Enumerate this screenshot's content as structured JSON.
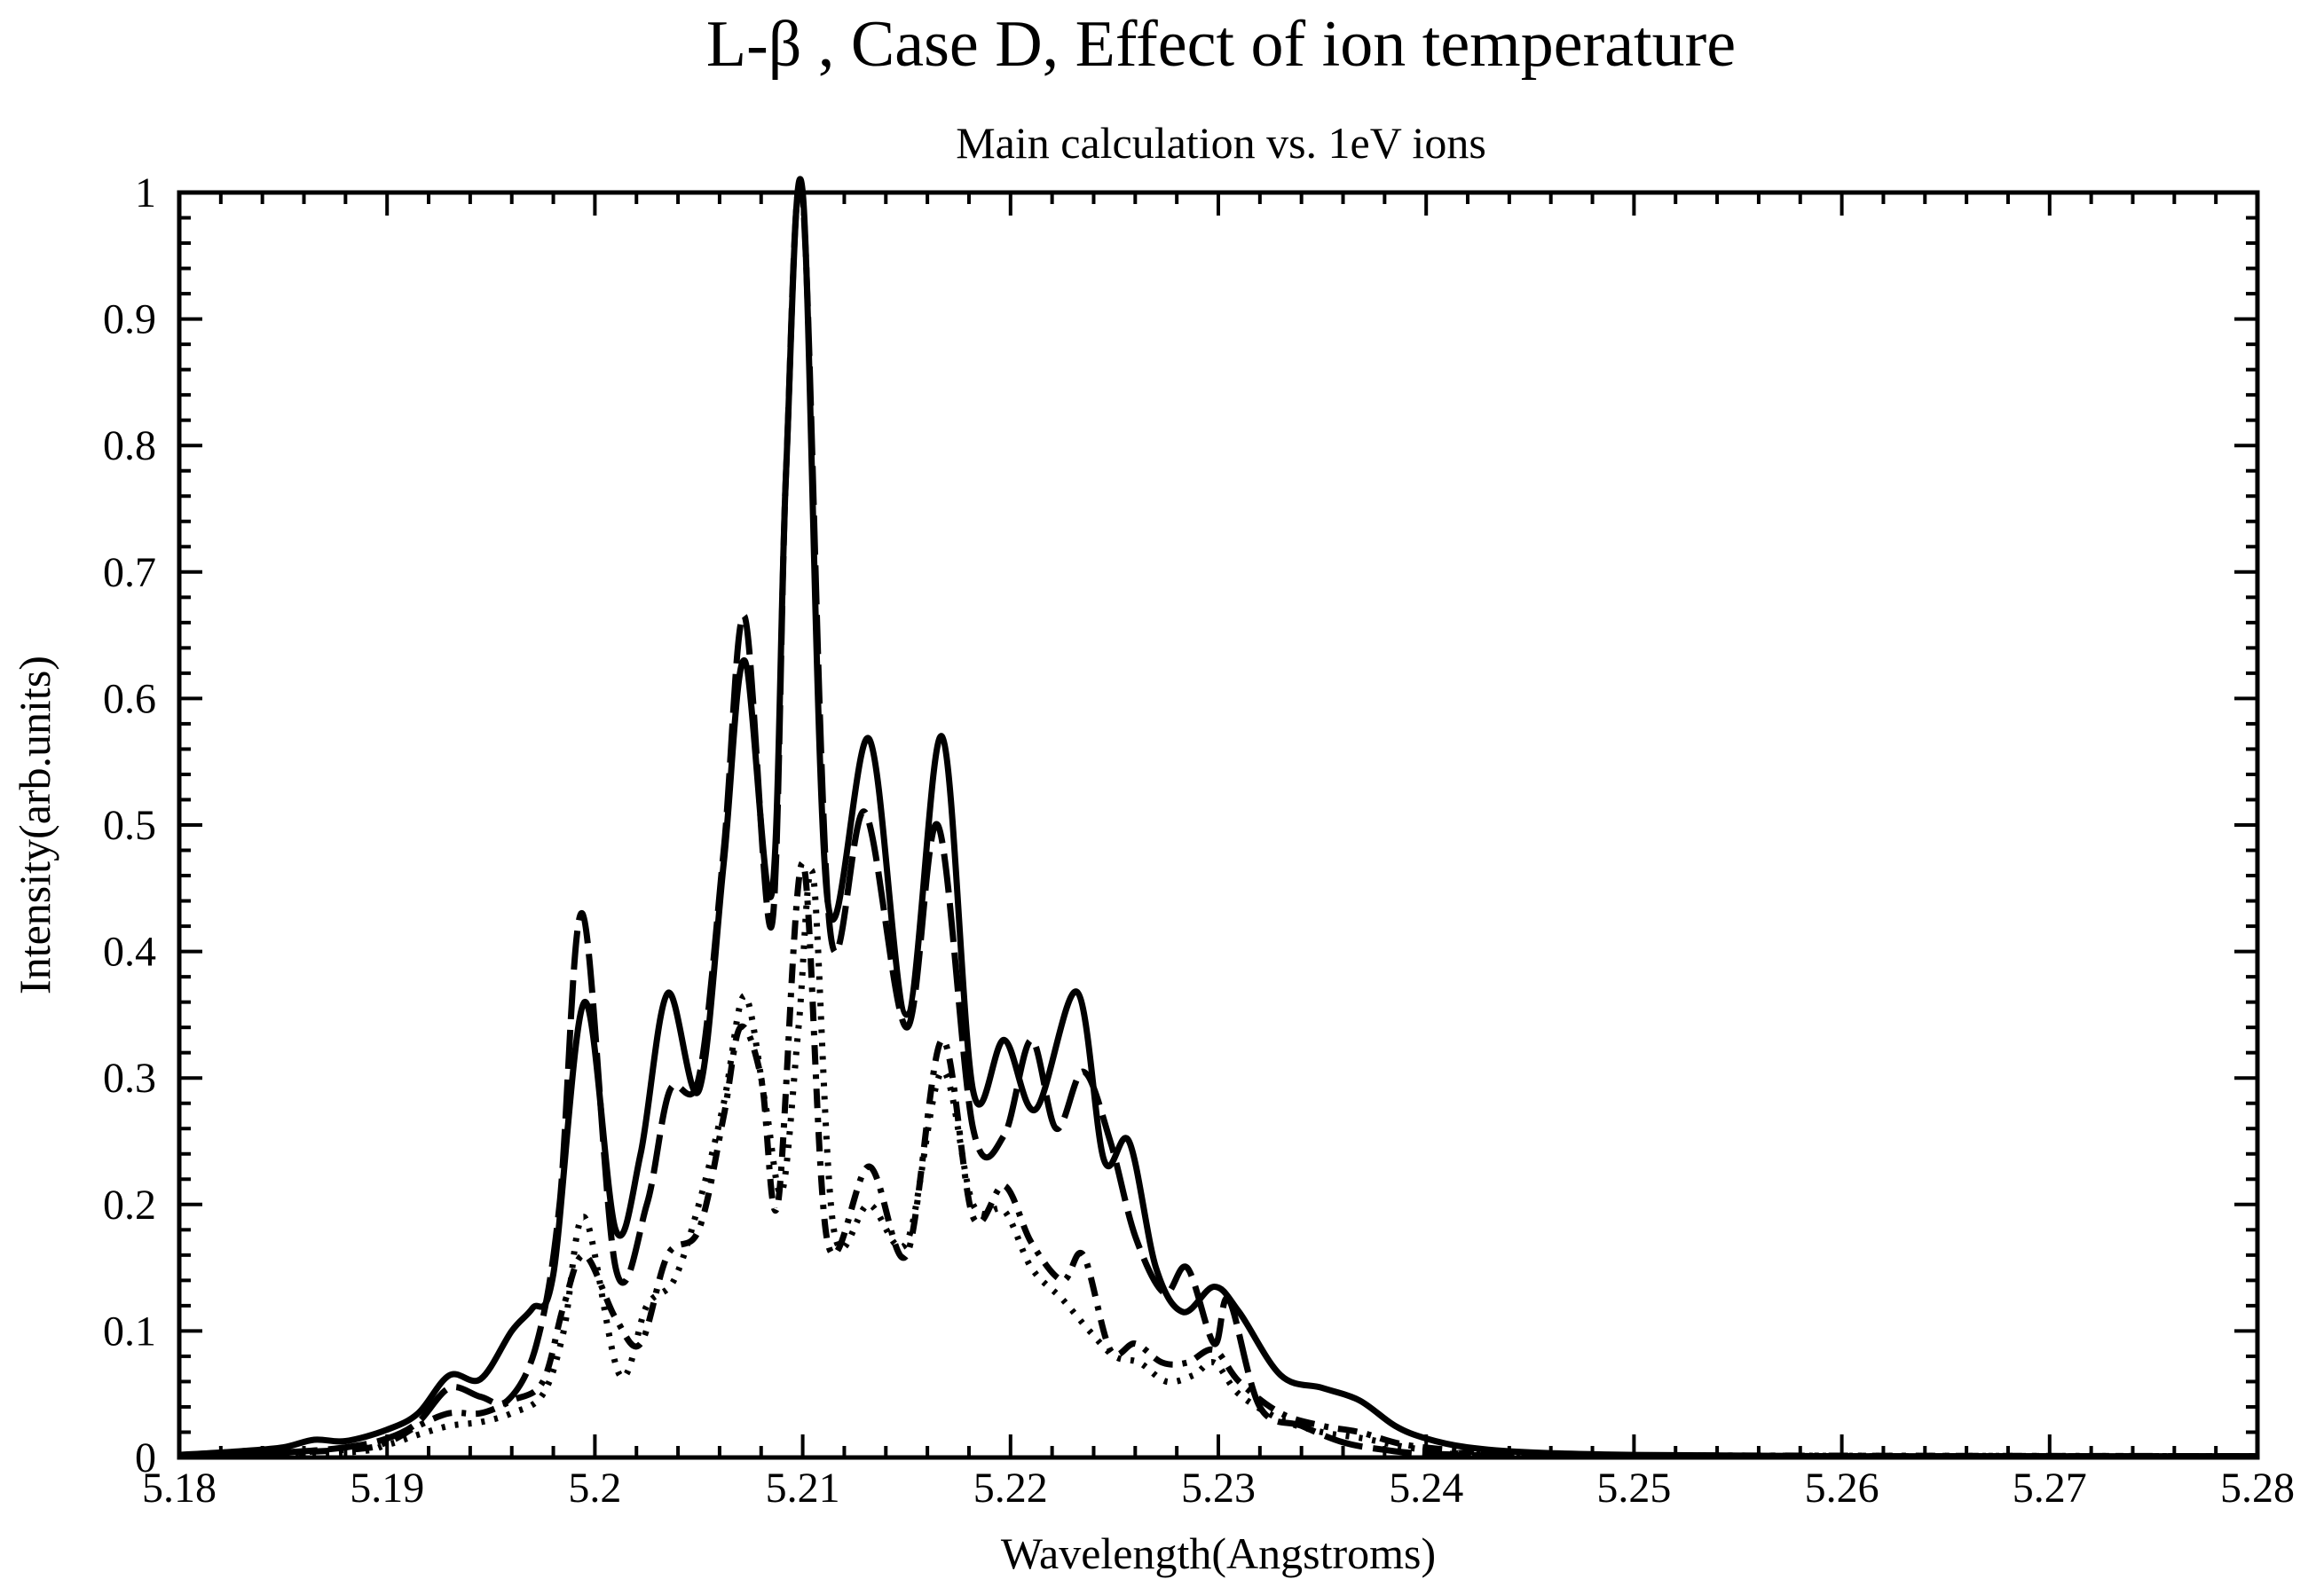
{
  "chart_data": {
    "type": "line",
    "title": "L-β , Case D, Effect of ion temperature",
    "subtitle": "Main calculation vs. 1eV ions",
    "xlabel": "Wavelength(Angstroms)",
    "ylabel": "Intensity(arb.units)",
    "xlim": [
      5.18,
      5.28
    ],
    "ylim": [
      0,
      1
    ],
    "x_ticks": [
      "5.18",
      "5.19",
      "5.2",
      "5.21",
      "5.22",
      "5.23",
      "5.24",
      "5.25",
      "5.26",
      "5.27",
      "5.28"
    ],
    "y_ticks": [
      "0",
      "0.1",
      "0.2",
      "0.3",
      "0.4",
      "0.5",
      "0.6",
      "0.7",
      "0.8",
      "0.9",
      "1"
    ],
    "grid": false,
    "series": [
      {
        "name": "main calculation (solid)",
        "style": "solid",
        "x": [
          5.18,
          5.183,
          5.185,
          5.1865,
          5.188,
          5.19,
          5.1915,
          5.193,
          5.1945,
          5.196,
          5.197,
          5.198,
          5.1995,
          5.201,
          5.2022,
          5.2035,
          5.205,
          5.2062,
          5.2072,
          5.2085,
          5.2092,
          5.21,
          5.2112,
          5.2132,
          5.215,
          5.2167,
          5.2182,
          5.2197,
          5.2212,
          5.2232,
          5.2245,
          5.2257,
          5.227,
          5.2283,
          5.2298,
          5.231,
          5.233,
          5.235,
          5.2368,
          5.2385,
          5.24,
          5.242,
          5.245,
          5.25,
          5.26,
          5.28
        ],
        "y": [
          0.002,
          0.005,
          0.008,
          0.014,
          0.013,
          0.022,
          0.035,
          0.065,
          0.062,
          0.1,
          0.118,
          0.145,
          0.36,
          0.18,
          0.24,
          0.367,
          0.29,
          0.47,
          0.63,
          0.445,
          0.78,
          1.0,
          0.44,
          0.568,
          0.35,
          0.57,
          0.29,
          0.33,
          0.275,
          0.368,
          0.235,
          0.25,
          0.15,
          0.115,
          0.135,
          0.115,
          0.065,
          0.055,
          0.045,
          0.025,
          0.015,
          0.008,
          0.004,
          0.002,
          0.001,
          0.001
        ]
      },
      {
        "name": "1eV ions (long dash)",
        "style": "long-dash",
        "x": [
          5.18,
          5.185,
          5.188,
          5.19,
          5.1915,
          5.193,
          5.1945,
          5.1958,
          5.1972,
          5.1983,
          5.1994,
          5.201,
          5.2025,
          5.2036,
          5.205,
          5.2062,
          5.2072,
          5.2085,
          5.2092,
          5.21,
          5.2113,
          5.213,
          5.215,
          5.2165,
          5.2182,
          5.2197,
          5.221,
          5.2222,
          5.2235,
          5.2248,
          5.226,
          5.2274,
          5.2285,
          5.2298,
          5.2305,
          5.232,
          5.234,
          5.236,
          5.238,
          5.24,
          5.245,
          5.25,
          5.28
        ],
        "y": [
          0.001,
          0.004,
          0.008,
          0.015,
          0.028,
          0.055,
          0.048,
          0.045,
          0.09,
          0.2,
          0.43,
          0.15,
          0.2,
          0.29,
          0.3,
          0.48,
          0.665,
          0.42,
          0.78,
          0.995,
          0.42,
          0.51,
          0.34,
          0.5,
          0.26,
          0.255,
          0.33,
          0.26,
          0.305,
          0.25,
          0.175,
          0.13,
          0.15,
          0.09,
          0.125,
          0.04,
          0.025,
          0.012,
          0.006,
          0.003,
          0.001,
          0.001,
          0.001
        ]
      },
      {
        "name": "dash-dot",
        "style": "dash-dot",
        "x": [
          5.18,
          5.188,
          5.19,
          5.1915,
          5.193,
          5.1945,
          5.196,
          5.1975,
          5.1985,
          5.1995,
          5.201,
          5.2022,
          5.2035,
          5.205,
          5.2062,
          5.207,
          5.208,
          5.2088,
          5.21,
          5.2112,
          5.2132,
          5.215,
          5.2167,
          5.2182,
          5.2197,
          5.221,
          5.2225,
          5.2235,
          5.2248,
          5.226,
          5.2273,
          5.2285,
          5.2298,
          5.231,
          5.233,
          5.235,
          5.2368,
          5.239,
          5.242,
          5.245,
          5.28
        ],
        "y": [
          0.001,
          0.006,
          0.012,
          0.025,
          0.035,
          0.035,
          0.045,
          0.06,
          0.12,
          0.16,
          0.11,
          0.09,
          0.16,
          0.18,
          0.27,
          0.34,
          0.3,
          0.2,
          0.47,
          0.17,
          0.23,
          0.16,
          0.33,
          0.19,
          0.215,
          0.17,
          0.14,
          0.16,
          0.085,
          0.09,
          0.075,
          0.075,
          0.085,
          0.06,
          0.035,
          0.025,
          0.02,
          0.01,
          0.005,
          0.002,
          0.001
        ]
      },
      {
        "name": "dotted",
        "style": "dotted",
        "x": [
          5.18,
          5.188,
          5.19,
          5.1915,
          5.193,
          5.1945,
          5.196,
          5.1975,
          5.1985,
          5.1995,
          5.2012,
          5.2025,
          5.2038,
          5.205,
          5.2062,
          5.2072,
          5.2082,
          5.209,
          5.2098,
          5.2105,
          5.2115,
          5.2132,
          5.215,
          5.2167,
          5.2182,
          5.2197,
          5.221,
          5.2225,
          5.2238,
          5.225,
          5.2262,
          5.2275,
          5.2288,
          5.2298,
          5.231,
          5.233,
          5.235,
          5.237,
          5.24,
          5.245,
          5.28
        ],
        "y": [
          0.001,
          0.004,
          0.01,
          0.018,
          0.025,
          0.028,
          0.035,
          0.05,
          0.1,
          0.19,
          0.065,
          0.12,
          0.14,
          0.2,
          0.28,
          0.365,
          0.28,
          0.21,
          0.34,
          0.46,
          0.18,
          0.2,
          0.17,
          0.305,
          0.2,
          0.195,
          0.15,
          0.125,
          0.1,
          0.08,
          0.075,
          0.06,
          0.065,
          0.075,
          0.05,
          0.03,
          0.02,
          0.015,
          0.006,
          0.002,
          0.001
        ]
      }
    ]
  }
}
